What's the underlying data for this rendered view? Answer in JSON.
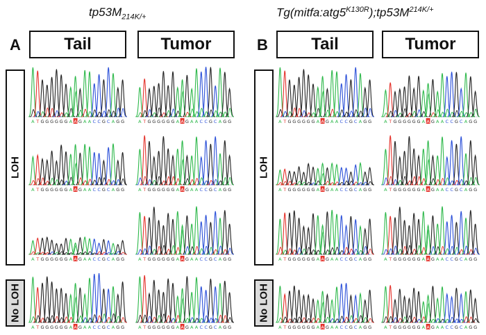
{
  "panel_a": {
    "letter": "A",
    "genotype_main": "tp53M",
    "genotype_sub": "214K/+",
    "columns": [
      "Tail",
      "Tumor"
    ],
    "groups": {
      "loh": "LOH",
      "no_loh": "No LOH"
    }
  },
  "panel_b": {
    "letter": "B",
    "genotype_part1": "Tg(mitfa:atg5",
    "genotype_sup1": "K130R",
    "genotype_part2": ");tp53M",
    "genotype_sup2": "214K/+",
    "columns": [
      "Tail",
      "Tumor"
    ],
    "groups": {
      "loh": "LOH",
      "no_loh": "No LOH"
    }
  },
  "sequence": [
    "A",
    "T",
    "G",
    "G",
    "G",
    "G",
    "G",
    "G",
    "A",
    "A",
    "G",
    "A",
    "A",
    "C",
    "C",
    "G",
    "C",
    "A",
    "G",
    "G"
  ],
  "base_colors": {
    "A": "#2db84a",
    "T": "#e4322b",
    "G": "#222222",
    "C": "#2a4fd8"
  },
  "highlight_color": "#e4322b",
  "traces": {
    "a_tail": [
      {
        "amp": 1.0
      },
      {
        "amp": 0.85
      },
      {
        "amp": 0.35
      },
      {
        "amp": 1.0
      }
    ],
    "a_tumor": [
      {
        "amp": 1.0
      },
      {
        "amp": 1.0
      },
      {
        "amp": 1.0
      },
      {
        "amp": 0.95
      }
    ],
    "b_tail": [
      {
        "amp": 1.0
      },
      {
        "amp": 0.45
      },
      {
        "amp": 0.9
      },
      {
        "amp": 0.8
      }
    ],
    "b_tumor": [
      {
        "amp": 0.9
      },
      {
        "amp": 1.0
      },
      {
        "amp": 1.0
      },
      {
        "amp": 0.75
      }
    ]
  }
}
